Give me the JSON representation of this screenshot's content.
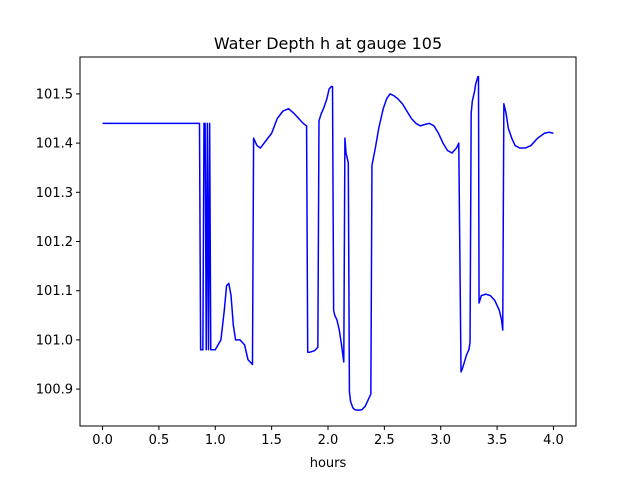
{
  "chart_data": {
    "type": "line",
    "title": "Water Depth h at gauge 105",
    "xlabel": "hours",
    "ylabel": "",
    "xlim": [
      -0.2,
      4.2
    ],
    "ylim": [
      100.825,
      101.575
    ],
    "xticks": [
      0.0,
      0.5,
      1.0,
      1.5,
      2.0,
      2.5,
      3.0,
      3.5,
      4.0
    ],
    "xtick_labels": [
      "0.0",
      "0.5",
      "1.0",
      "1.5",
      "2.0",
      "2.5",
      "3.0",
      "3.5",
      "4.0"
    ],
    "yticks": [
      100.9,
      101.0,
      101.1,
      101.2,
      101.3,
      101.4,
      101.5
    ],
    "ytick_labels": [
      "100.9",
      "101.0",
      "101.1",
      "101.2",
      "101.3",
      "101.4",
      "101.5"
    ],
    "grid": false,
    "series": [
      {
        "color": "#0000ff",
        "x": [
          0.0,
          0.86,
          0.87,
          0.89,
          0.9,
          0.91,
          0.92,
          0.93,
          0.94,
          0.95,
          0.96,
          0.97,
          1.0,
          1.05,
          1.08,
          1.1,
          1.12,
          1.14,
          1.16,
          1.18,
          1.22,
          1.26,
          1.29,
          1.33,
          1.34,
          1.37,
          1.4,
          1.45,
          1.5,
          1.55,
          1.6,
          1.65,
          1.7,
          1.74,
          1.78,
          1.81,
          1.82,
          1.84,
          1.88,
          1.91,
          1.92,
          1.94,
          1.96,
          1.99,
          2.01,
          2.03,
          2.04,
          2.05,
          2.06,
          2.08,
          2.1,
          2.12,
          2.14,
          2.15,
          2.16,
          2.18,
          2.19,
          2.2,
          2.22,
          2.24,
          2.27,
          2.3,
          2.33,
          2.36,
          2.38,
          2.39,
          2.42,
          2.45,
          2.49,
          2.52,
          2.55,
          2.58,
          2.62,
          2.66,
          2.7,
          2.74,
          2.78,
          2.82,
          2.86,
          2.9,
          2.94,
          2.98,
          3.02,
          3.06,
          3.1,
          3.14,
          3.16,
          3.18,
          3.19,
          3.21,
          3.23,
          3.25,
          3.26,
          3.27,
          3.28,
          3.3,
          3.31,
          3.33,
          3.335,
          3.34,
          3.36,
          3.4,
          3.44,
          3.48,
          3.52,
          3.54,
          3.55,
          3.56,
          3.58,
          3.6,
          3.63,
          3.66,
          3.7,
          3.75,
          3.8,
          3.86,
          3.92,
          3.96,
          4.0
        ],
        "y": [
          101.44,
          101.44,
          100.98,
          100.98,
          101.44,
          101.44,
          100.98,
          101.44,
          100.98,
          101.44,
          100.98,
          100.98,
          100.98,
          101.0,
          101.06,
          101.11,
          101.115,
          101.09,
          101.03,
          101.0,
          101.0,
          100.99,
          100.96,
          100.95,
          101.41,
          101.395,
          101.39,
          101.405,
          101.42,
          101.45,
          101.465,
          101.47,
          101.46,
          101.45,
          101.44,
          101.435,
          100.975,
          100.975,
          100.978,
          100.985,
          101.445,
          101.46,
          101.47,
          101.49,
          101.51,
          101.515,
          101.515,
          101.06,
          101.05,
          101.04,
          101.02,
          100.99,
          100.955,
          101.41,
          101.38,
          101.36,
          100.895,
          100.875,
          100.862,
          100.858,
          100.857,
          100.858,
          100.865,
          100.88,
          100.89,
          101.355,
          101.39,
          101.43,
          101.47,
          101.49,
          101.5,
          101.497,
          101.49,
          101.48,
          101.465,
          101.45,
          101.44,
          101.435,
          101.438,
          101.44,
          101.435,
          101.42,
          101.4,
          101.385,
          101.38,
          101.39,
          101.4,
          100.935,
          100.94,
          100.955,
          100.97,
          100.98,
          100.995,
          101.46,
          101.485,
          101.505,
          101.52,
          101.535,
          101.535,
          101.075,
          101.09,
          101.093,
          101.09,
          101.08,
          101.06,
          101.04,
          101.02,
          101.48,
          101.46,
          101.43,
          101.41,
          101.395,
          101.39,
          101.39,
          101.395,
          101.41,
          101.42,
          101.422,
          101.42
        ]
      }
    ]
  }
}
